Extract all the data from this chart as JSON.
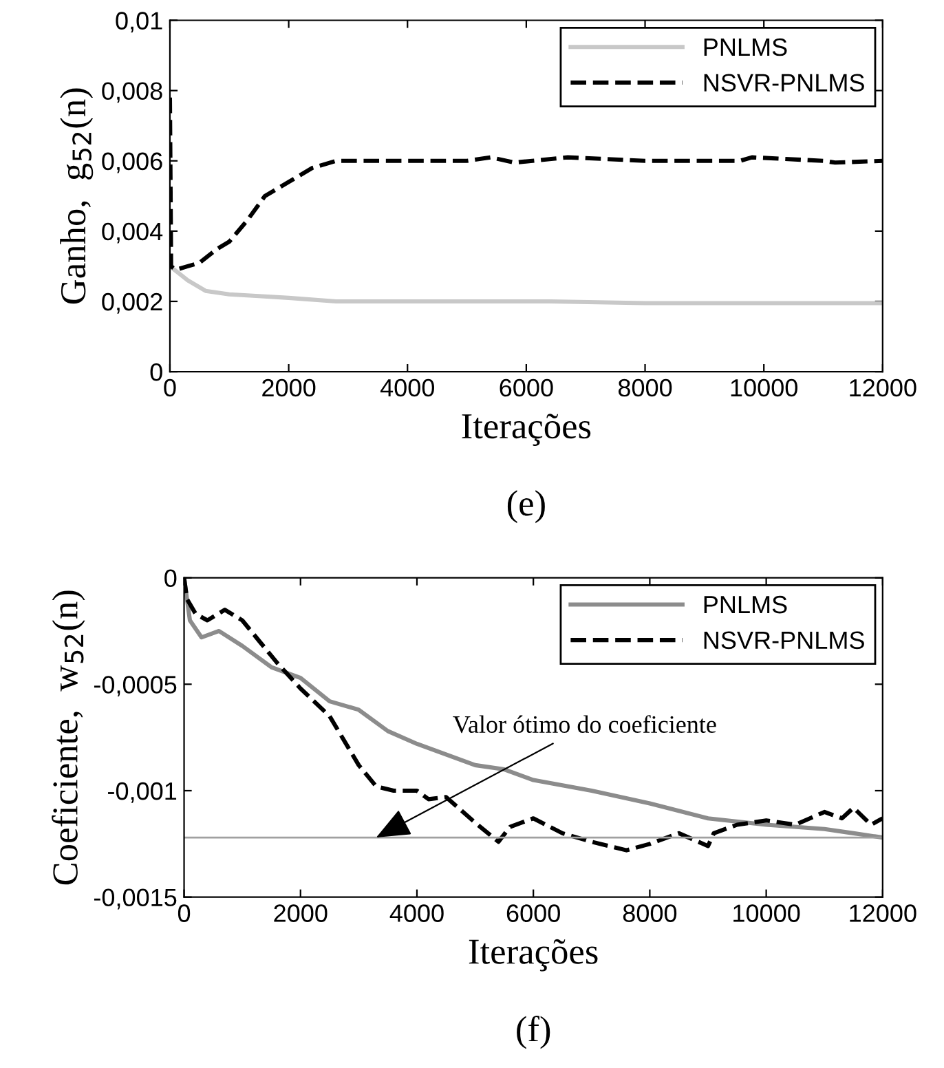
{
  "chart_data": [
    {
      "type": "line",
      "xlabel": "Iterações",
      "ylabel": "Ganho,  g$_{52}$(n)",
      "annotations": [
        "(e)"
      ],
      "xlim": [
        0,
        12000
      ],
      "ylim": [
        0,
        0.01
      ],
      "xticks": [
        0,
        2000,
        4000,
        6000,
        8000,
        10000,
        12000
      ],
      "yticks": [
        0,
        {
          "value": 0.002,
          "label": "0,002"
        },
        {
          "value": 0.004,
          "label": "0,004"
        },
        {
          "value": 0.006,
          "label": "0,006"
        },
        {
          "value": 0.008,
          "label": "0,008"
        },
        {
          "value": 0.01,
          "label": "0,01"
        }
      ],
      "grid": false,
      "legend": "top right",
      "series": [
        {
          "name": "PNLMS",
          "color": "#c8c8c8",
          "line_style": "solid",
          "x": [
            0,
            300,
            600,
            1000,
            1500,
            2000,
            2800,
            4000,
            6400,
            8000,
            10000,
            12000
          ],
          "values": [
            0.003,
            0.0026,
            0.0023,
            0.0022,
            0.00215,
            0.0021,
            0.002,
            0.002,
            0.002,
            0.00195,
            0.00195,
            0.00195
          ]
        },
        {
          "name": "NSVR-PNLMS",
          "color": "#000000",
          "line_style": "dashed",
          "x": [
            0,
            20,
            100,
            300,
            500,
            800,
            1000,
            1300,
            1600,
            2000,
            2400,
            2800,
            3500,
            5000,
            5400,
            5800,
            6700,
            8000,
            9600,
            9800,
            11000,
            11200,
            12000
          ],
          "values": [
            0.0078,
            0.003,
            0.0029,
            0.003,
            0.0031,
            0.0035,
            0.0037,
            0.0043,
            0.005,
            0.0054,
            0.0058,
            0.006,
            0.006,
            0.006,
            0.0061,
            0.00595,
            0.0061,
            0.006,
            0.006,
            0.0061,
            0.006,
            0.00595,
            0.006
          ]
        }
      ]
    },
    {
      "type": "line",
      "xlabel": "Iterações",
      "ylabel": "Coeficiente,  w$_{52}$(n)",
      "annotations": [
        "(f)",
        {
          "text": "Valor ótimo do coeficiente",
          "x": 3300,
          "y": -0.00122
        }
      ],
      "xlim": [
        0,
        12000
      ],
      "ylim": [
        -0.0015,
        0
      ],
      "xticks": [
        0,
        2000,
        4000,
        6000,
        8000,
        10000,
        12000
      ],
      "yticks": [
        {
          "value": -0.0015,
          "label": "-0,0015"
        },
        {
          "value": -0.001,
          "label": "-0,001"
        },
        {
          "value": -0.0005,
          "label": "-0,0005"
        },
        0
      ],
      "grid": false,
      "legend": "top right",
      "ref_lines": [
        {
          "axis": "y",
          "value": -0.00122,
          "color": "#a0a0a0",
          "line_style": "solid"
        }
      ],
      "series": [
        {
          "name": "PNLMS",
          "color": "#8c8c8c",
          "line_style": "solid",
          "x": [
            0,
            100,
            300,
            600,
            1000,
            1500,
            2000,
            2500,
            3000,
            3500,
            4000,
            4500,
            5000,
            5500,
            6000,
            7000,
            8000,
            9000,
            10000,
            11000,
            11500,
            12000
          ],
          "values": [
            0,
            -0.0002,
            -0.00028,
            -0.00025,
            -0.00032,
            -0.00042,
            -0.00047,
            -0.00058,
            -0.00062,
            -0.00072,
            -0.00078,
            -0.00083,
            -0.00088,
            -0.0009,
            -0.00095,
            -0.001,
            -0.00106,
            -0.00113,
            -0.00116,
            -0.00118,
            -0.0012,
            -0.00122
          ]
        },
        {
          "name": "NSVR-PNLMS",
          "color": "#000000",
          "line_style": "dashed",
          "x": [
            0,
            50,
            200,
            400,
            700,
            1000,
            1300,
            1600,
            2000,
            2500,
            3000,
            3300,
            3600,
            4000,
            4200,
            4500,
            5000,
            5400,
            5600,
            6000,
            6500,
            7000,
            7600,
            8000,
            8500,
            9000,
            9100,
            9500,
            10000,
            10500,
            11000,
            11300,
            11500,
            11800,
            12000
          ],
          "values": [
            0,
            -0.0001,
            -0.00017,
            -0.0002,
            -0.00015,
            -0.0002,
            -0.0003,
            -0.0004,
            -0.00052,
            -0.00065,
            -0.00088,
            -0.00098,
            -0.001,
            -0.001,
            -0.00104,
            -0.00103,
            -0.00115,
            -0.00124,
            -0.00117,
            -0.00113,
            -0.0012,
            -0.00124,
            -0.00128,
            -0.00125,
            -0.0012,
            -0.00126,
            -0.0012,
            -0.00116,
            -0.00114,
            -0.00116,
            -0.0011,
            -0.00113,
            -0.00108,
            -0.00116,
            -0.00113
          ]
        }
      ]
    }
  ]
}
